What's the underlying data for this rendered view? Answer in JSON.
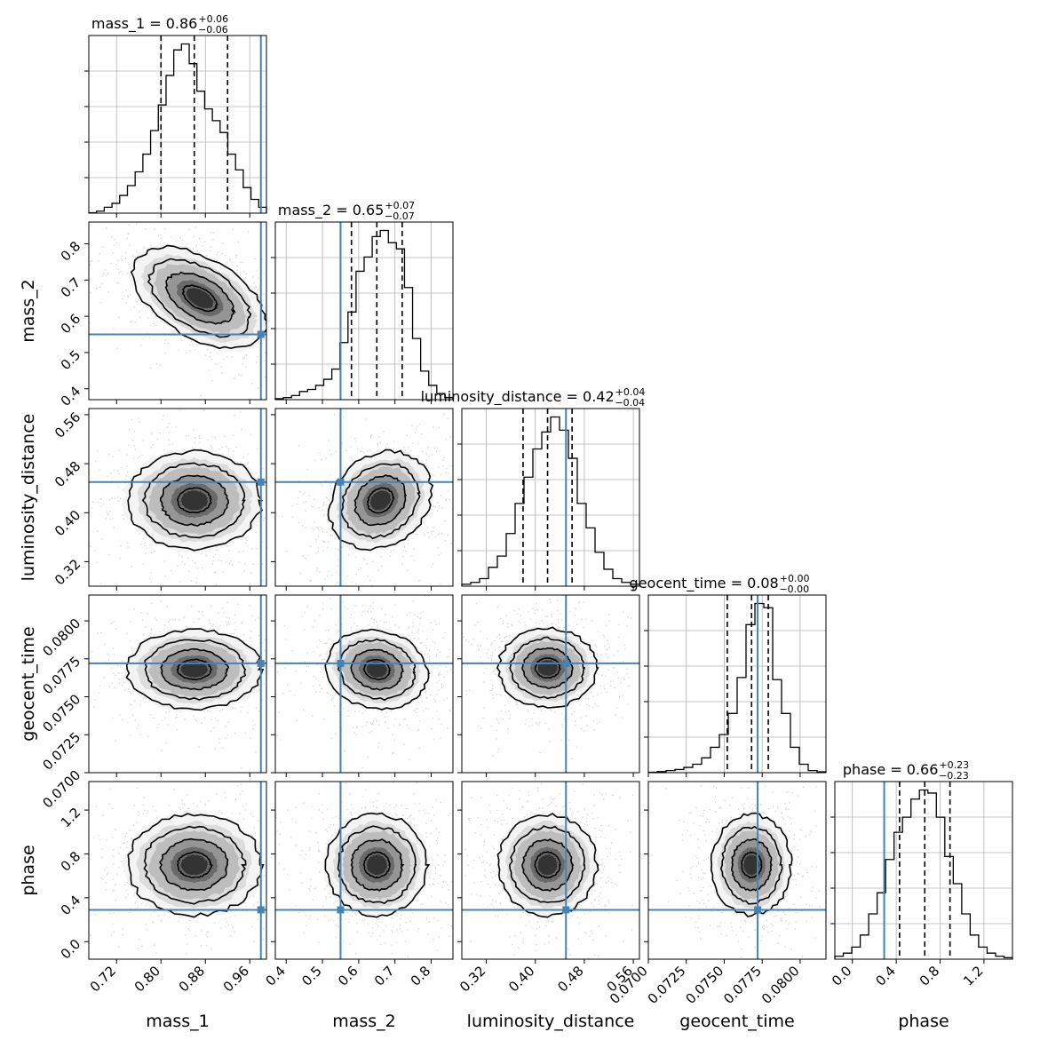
{
  "chart_data": {
    "type": "corner",
    "parameters": [
      {
        "name": "mass_1",
        "axis_label": "mass_1",
        "title_text": "mass_1 = 0.86",
        "title_sup": "+0.06",
        "title_sub": "−0.06",
        "range": [
          0.67,
          0.99
        ],
        "ticks": [
          "0.72",
          "0.80",
          "0.88",
          "0.96"
        ],
        "median": 0.86,
        "q_low": 0.8,
        "q_high": 0.92,
        "truth": 0.98,
        "hist": [
          0.002,
          0.01,
          0.03,
          0.05,
          0.09,
          0.14,
          0.21,
          0.3,
          0.42,
          0.55,
          0.7,
          0.83,
          0.86,
          0.76,
          0.62,
          0.53,
          0.47,
          0.41,
          0.3,
          0.22,
          0.13,
          0.07,
          0.03
        ]
      },
      {
        "name": "mass_2",
        "axis_label": "mass_2",
        "title_text": "mass_2 = 0.65",
        "title_sup": "+0.07",
        "title_sub": "−0.07",
        "range": [
          0.37,
          0.86
        ],
        "ticks": [
          "0.4",
          "0.5",
          "0.6",
          "0.7",
          "0.8"
        ],
        "median": 0.65,
        "q_low": 0.58,
        "q_high": 0.72,
        "truth": 0.55,
        "hist": [
          0.005,
          0.01,
          0.02,
          0.04,
          0.05,
          0.07,
          0.1,
          0.15,
          0.28,
          0.43,
          0.63,
          0.7,
          0.8,
          0.83,
          0.77,
          0.74,
          0.55,
          0.3,
          0.14,
          0.07,
          0.03,
          0.01
        ]
      },
      {
        "name": "luminosity_distance",
        "axis_label": "luminosity_distance",
        "title_text": "luminosity_distance = 0.42",
        "title_sup": "+0.04",
        "title_sub": "−0.04",
        "range": [
          0.28,
          0.57
        ],
        "ticks": [
          "0.32",
          "0.40",
          "0.48",
          "0.56"
        ],
        "median": 0.42,
        "q_low": 0.38,
        "q_high": 0.46,
        "truth": 0.45,
        "hist": [
          0.01,
          0.02,
          0.04,
          0.1,
          0.16,
          0.28,
          0.44,
          0.58,
          0.73,
          0.82,
          0.9,
          0.83,
          0.68,
          0.44,
          0.31,
          0.18,
          0.09,
          0.04,
          0.02,
          0.01
        ]
      },
      {
        "name": "geocent_time",
        "axis_label": "geocent_time",
        "title_text": "geocent_time = 0.08",
        "title_sup": "+0.00",
        "title_sub": "−0.00",
        "range": [
          0.07,
          0.0817
        ],
        "ticks": [
          "0.0700",
          "0.0725",
          "0.0750",
          "0.0775",
          "0.0800"
        ],
        "median": 0.0768,
        "q_low": 0.0752,
        "q_high": 0.0779,
        "truth": 0.0772,
        "hist": [
          0.002,
          0.005,
          0.01,
          0.015,
          0.025,
          0.04,
          0.07,
          0.12,
          0.18,
          0.28,
          0.45,
          0.7,
          0.8,
          0.78,
          0.44,
          0.28,
          0.12,
          0.04,
          0.01,
          0.004
        ]
      },
      {
        "name": "phase",
        "axis_label": "phase",
        "title_text": "phase = 0.66",
        "title_sup": "+0.23",
        "title_sub": "−0.23",
        "range": [
          -0.16,
          1.46
        ],
        "ticks": [
          "0.0",
          "0.4",
          "0.8",
          "1.2"
        ],
        "median": 0.66,
        "q_low": 0.43,
        "q_high": 0.89,
        "truth": 0.29,
        "hist": [
          0.01,
          0.02,
          0.04,
          0.08,
          0.15,
          0.22,
          0.33,
          0.42,
          0.47,
          0.53,
          0.56,
          0.55,
          0.47,
          0.34,
          0.25,
          0.15,
          0.08,
          0.04,
          0.02,
          0.01,
          0.005
        ]
      }
    ],
    "pairs": [
      {
        "row": 1,
        "col": 0,
        "center": [
          0.87,
          0.65
        ],
        "spread": [
          0.06,
          0.07
        ],
        "rho": -0.5
      },
      {
        "row": 2,
        "col": 0,
        "center": [
          0.86,
          0.42
        ],
        "spread": [
          0.06,
          0.04
        ],
        "rho": 0.0
      },
      {
        "row": 2,
        "col": 1,
        "center": [
          0.66,
          0.42
        ],
        "spread": [
          0.07,
          0.04
        ],
        "rho": 0.2
      },
      {
        "row": 3,
        "col": 0,
        "center": [
          0.86,
          0.0768
        ],
        "spread": [
          0.06,
          0.0013
        ],
        "rho": 0.0
      },
      {
        "row": 3,
        "col": 1,
        "center": [
          0.65,
          0.0768
        ],
        "spread": [
          0.07,
          0.0013
        ],
        "rho": -0.1
      },
      {
        "row": 3,
        "col": 2,
        "center": [
          0.42,
          0.0769
        ],
        "spread": [
          0.04,
          0.0013
        ],
        "rho": 0.0
      },
      {
        "row": 4,
        "col": 0,
        "center": [
          0.86,
          0.7
        ],
        "spread": [
          0.06,
          0.23
        ],
        "rho": 0.0
      },
      {
        "row": 4,
        "col": 1,
        "center": [
          0.65,
          0.7
        ],
        "spread": [
          0.07,
          0.23
        ],
        "rho": 0.0
      },
      {
        "row": 4,
        "col": 2,
        "center": [
          0.42,
          0.7
        ],
        "spread": [
          0.04,
          0.23
        ],
        "rho": 0.0
      },
      {
        "row": 4,
        "col": 3,
        "center": [
          0.0768,
          0.7
        ],
        "spread": [
          0.0013,
          0.23
        ],
        "rho": 0.0
      }
    ],
    "grid": true,
    "colors": {
      "truth": "#4682b4",
      "hist": "#000000",
      "grid": "#b0b0b0",
      "points": "#808080"
    }
  }
}
